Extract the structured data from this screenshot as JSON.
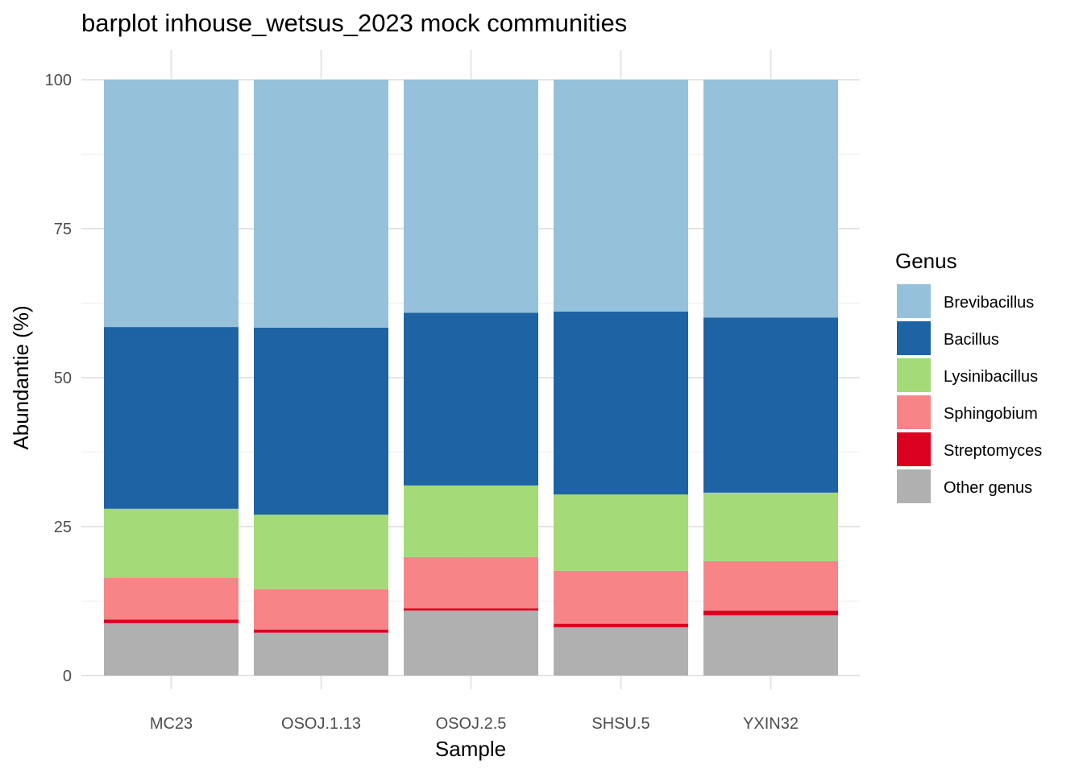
{
  "chart_data": {
    "type": "bar",
    "stacked": true,
    "title": "barplot inhouse_wetsus_2023 mock communities",
    "xlabel": "Sample",
    "ylabel": "Abundantie (%)",
    "ylim": [
      0,
      100
    ],
    "yticks": [
      "0",
      "25",
      "50",
      "75",
      "100"
    ],
    "categories": [
      "MC23",
      "OSOJ.1.13",
      "OSOJ.2.5",
      "SHSU.5",
      "YXIN32"
    ],
    "legend_title": "Genus",
    "legend_position": "right",
    "grid": true,
    "series": [
      {
        "name": "Other genus",
        "color": "#B0B0B0",
        "values": [
          8.8,
          7.2,
          10.9,
          8.1,
          10.1
        ]
      },
      {
        "name": "Streptomyces",
        "color": "#DB0020",
        "values": [
          0.6,
          0.5,
          0.4,
          0.6,
          0.8
        ]
      },
      {
        "name": "Sphingobium",
        "color": "#F78587",
        "values": [
          7.0,
          6.8,
          8.6,
          8.9,
          8.3
        ]
      },
      {
        "name": "Lysinibacillus",
        "color": "#A4DA77",
        "values": [
          11.6,
          12.5,
          12.0,
          12.8,
          11.5
        ]
      },
      {
        "name": "Bacillus",
        "color": "#1E63A4",
        "values": [
          30.5,
          31.4,
          29.0,
          30.7,
          29.4
        ]
      },
      {
        "name": "Brevibacillus",
        "color": "#96C1DB",
        "values": [
          41.5,
          41.6,
          39.1,
          38.9,
          39.9
        ]
      }
    ],
    "legend_order": [
      "Brevibacillus",
      "Bacillus",
      "Lysinibacillus",
      "Sphingobium",
      "Streptomyces",
      "Other genus"
    ]
  }
}
